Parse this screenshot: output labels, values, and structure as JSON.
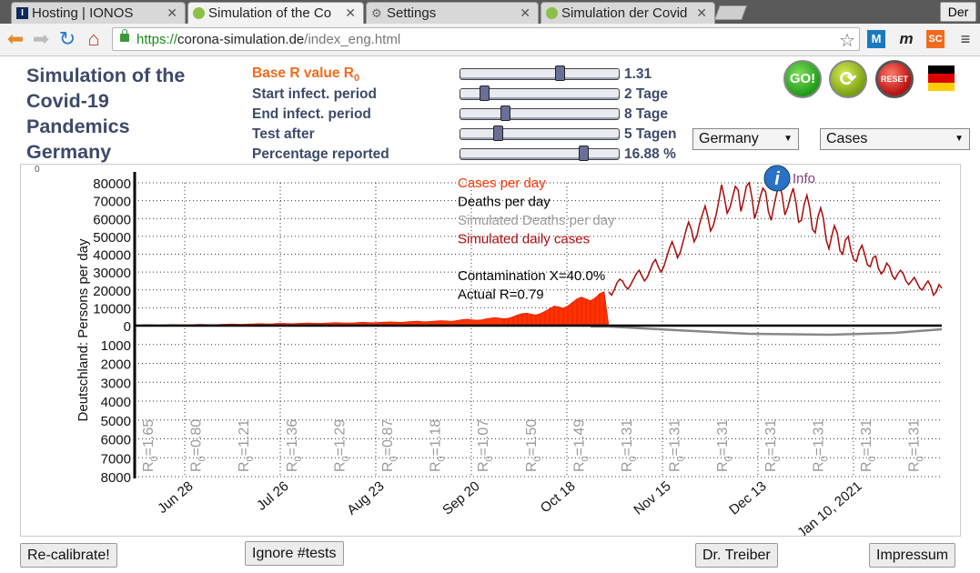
{
  "browser": {
    "tabs": [
      {
        "label": "Hosting | IONOS"
      },
      {
        "label": "Simulation of the Co"
      },
      {
        "label": "Settings"
      },
      {
        "label": "Simulation der Covid"
      }
    ],
    "profile": "Der",
    "url_protocol": "https://",
    "url_host": "corona-simulation.de",
    "url_path": "/index_eng.html",
    "extensions": [
      "M",
      "m",
      "SC"
    ]
  },
  "page": {
    "title_lines": [
      "Simulation of the",
      "Covid-19",
      "Pandemics",
      "Germany"
    ],
    "params": [
      {
        "label": "Base R value R",
        "sub": "0",
        "value": "1.31",
        "level": 0.64
      },
      {
        "label": "Start infect. period",
        "value": "2 Tage",
        "level": 0.13
      },
      {
        "label": "End infect. period",
        "value": "8 Tage",
        "level": 0.27
      },
      {
        "label": "Test after",
        "value": "5 Tagen",
        "level": 0.22
      },
      {
        "label": "Percentage reported",
        "value": "16.88 %",
        "level": 0.8
      }
    ],
    "country_select": "Germany",
    "mode_select": "Cases",
    "buttons": {
      "go": "GO!",
      "reset": "RESET",
      "recalibrate": "Re-calibrate!",
      "ignore_tests": "Ignore #tests",
      "dr_treiber": "Dr. Treiber",
      "impressum": "Impressum"
    },
    "info": "Info"
  },
  "chart_data": {
    "type": "area",
    "ylabel": "Deutschland: Persons per day",
    "corner_mark": "0",
    "y_ticks_top": [
      "80000",
      "70000",
      "60000",
      "50000",
      "40000",
      "30000",
      "20000",
      "10000",
      "0"
    ],
    "y_ticks_bottom": [
      "1000",
      "2000",
      "3000",
      "4000",
      "5000",
      "6000",
      "7000",
      "8000"
    ],
    "x_ticks": [
      "Jun 28",
      "Jul 26",
      "Aug 23",
      "Sep 20",
      "Oct 18",
      "Nov 15",
      "Dec 13",
      "Jan 10, 2021"
    ],
    "r_prefix": "R",
    "r_subscript": "0",
    "r_values": [
      "=1.65",
      "=0.80",
      "=1.21",
      "=1.36",
      "=1.29",
      "=0.87",
      "=1.18",
      "=1.07",
      "=1.50",
      "=1.49",
      "=1.31",
      "=1.31",
      "=1.31",
      "=1.31",
      "=1.31",
      "=1.31",
      "=1.31"
    ],
    "legend": [
      {
        "label": "Cases per day",
        "color": "#ff3300"
      },
      {
        "label": "Deaths per day",
        "color": "#000000"
      },
      {
        "label": "Simulated Deaths per day",
        "color": "#9a9a9a"
      },
      {
        "label": "Simulated daily cases",
        "color": "#aa0a0a"
      }
    ],
    "annotations": [
      "Contamination X=40.0%",
      "Actual R=0.79"
    ],
    "cases_per_day": [
      400,
      350,
      500,
      450,
      400,
      380,
      420,
      500,
      600,
      550,
      480,
      500,
      520,
      600,
      700,
      650,
      600,
      550,
      620,
      700,
      800,
      900,
      850,
      780,
      820,
      900,
      1000,
      1100,
      1050,
      950,
      1000,
      1200,
      1300,
      1250,
      1100,
      1150,
      1300,
      1400,
      1500,
      1400,
      1300,
      1350,
      1500,
      1600,
      1700,
      1600,
      1500,
      1550,
      1600,
      1800,
      1900,
      1800,
      1700,
      1750,
      1900,
      2000,
      2100,
      2000,
      1900,
      2000,
      2200,
      2400,
      2500,
      2300,
      2200,
      2400,
      2600,
      2800,
      2700,
      2500,
      2600,
      3000,
      3400,
      3600,
      3300,
      3000,
      3200,
      3800,
      4200,
      4500,
      4200,
      3900,
      4200,
      5000,
      6000,
      6800,
      7000,
      6400,
      6000,
      6800,
      8000,
      9500,
      11000,
      10500,
      9800,
      11000,
      13000,
      15000,
      16000,
      15000,
      14000,
      15500,
      18000,
      19000
    ],
    "simulated_daily_cases": [
      19000,
      17000,
      20000,
      24000,
      26000,
      25000,
      22000,
      20500,
      23000,
      26000,
      29000,
      31000,
      28000,
      25000,
      27000,
      31000,
      35000,
      37000,
      33000,
      30000,
      33000,
      38000,
      43000,
      47000,
      43000,
      38000,
      41000,
      47000,
      53000,
      58000,
      54000,
      47000,
      50000,
      57000,
      62000,
      67000,
      61000,
      53000,
      56000,
      62000,
      70000,
      79000,
      72000,
      63000,
      66000,
      72000,
      78000,
      76000,
      64000,
      70000,
      78000,
      80000,
      72000,
      60000,
      65000,
      72000,
      77000,
      75000,
      64000,
      59000,
      67000,
      74000,
      80000,
      73000,
      62000,
      66000,
      72000,
      77000,
      69000,
      58000,
      59000,
      68000,
      73000,
      66000,
      54000,
      52000,
      61000,
      66000,
      60000,
      48000,
      43000,
      50000,
      56000,
      52000,
      42000,
      40000,
      48000,
      50000,
      42000,
      37000,
      36000,
      42000,
      45000,
      40000,
      34000,
      33000,
      38000,
      39000,
      32000,
      29000,
      31000,
      35000,
      33000,
      28000,
      26000,
      29000,
      31000,
      29000,
      25000,
      23000,
      25000,
      27000,
      24000,
      21000,
      20000,
      23000,
      25000,
      22000,
      17000,
      19000,
      23000,
      21000
    ]
  }
}
